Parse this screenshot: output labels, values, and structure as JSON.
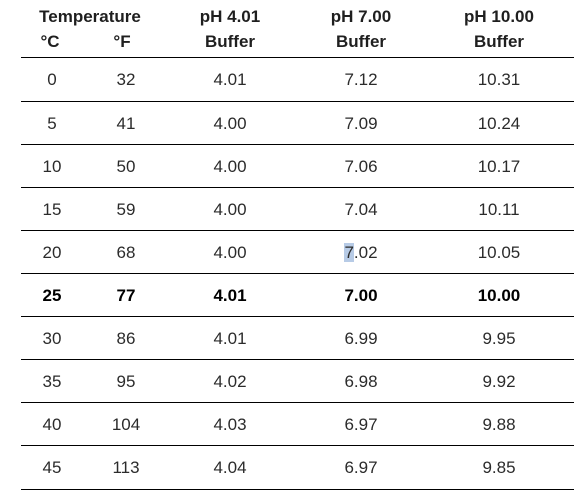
{
  "header": {
    "temperature": "Temperature",
    "celsius": "°C",
    "fahrenheit": "°F",
    "ph401_line1": "pH 4.01",
    "ph401_line2": "Buffer",
    "ph700_line1": "pH 7.00",
    "ph700_line2": "Buffer",
    "ph1000_line1": "pH 10.00",
    "ph1000_line2": "Buffer"
  },
  "rows": [
    {
      "c": "0",
      "f": "32",
      "ph4": "4.01",
      "ph7": "7.12",
      "ph10": "10.31",
      "bold": false
    },
    {
      "c": "5",
      "f": "41",
      "ph4": "4.00",
      "ph7": "7.09",
      "ph10": "10.24",
      "bold": false
    },
    {
      "c": "10",
      "f": "50",
      "ph4": "4.00",
      "ph7": "7.06",
      "ph10": "10.17",
      "bold": false
    },
    {
      "c": "15",
      "f": "59",
      "ph4": "4.00",
      "ph7": "7.04",
      "ph10": "10.11",
      "bold": false
    },
    {
      "c": "20",
      "f": "68",
      "ph4": "4.00",
      "ph7": "7.02",
      "ph10": "10.05",
      "bold": false
    },
    {
      "c": "25",
      "f": "77",
      "ph4": "4.01",
      "ph7": "7.00",
      "ph10": "10.00",
      "bold": true
    },
    {
      "c": "30",
      "f": "86",
      "ph4": "4.01",
      "ph7": "6.99",
      "ph10": "9.95",
      "bold": false
    },
    {
      "c": "35",
      "f": "95",
      "ph4": "4.02",
      "ph7": "6.98",
      "ph10": "9.92",
      "bold": false
    },
    {
      "c": "40",
      "f": "104",
      "ph4": "4.03",
      "ph7": "6.97",
      "ph10": "9.88",
      "bold": false
    },
    {
      "c": "45",
      "f": "113",
      "ph4": "4.04",
      "ph7": "6.97",
      "ph10": "9.85",
      "bold": false
    }
  ],
  "selection": {
    "row": 4,
    "column": "ph7",
    "selected_text": "7"
  },
  "colors": {
    "selection_highlight": "#b7cbe6",
    "rule": "#000000"
  }
}
